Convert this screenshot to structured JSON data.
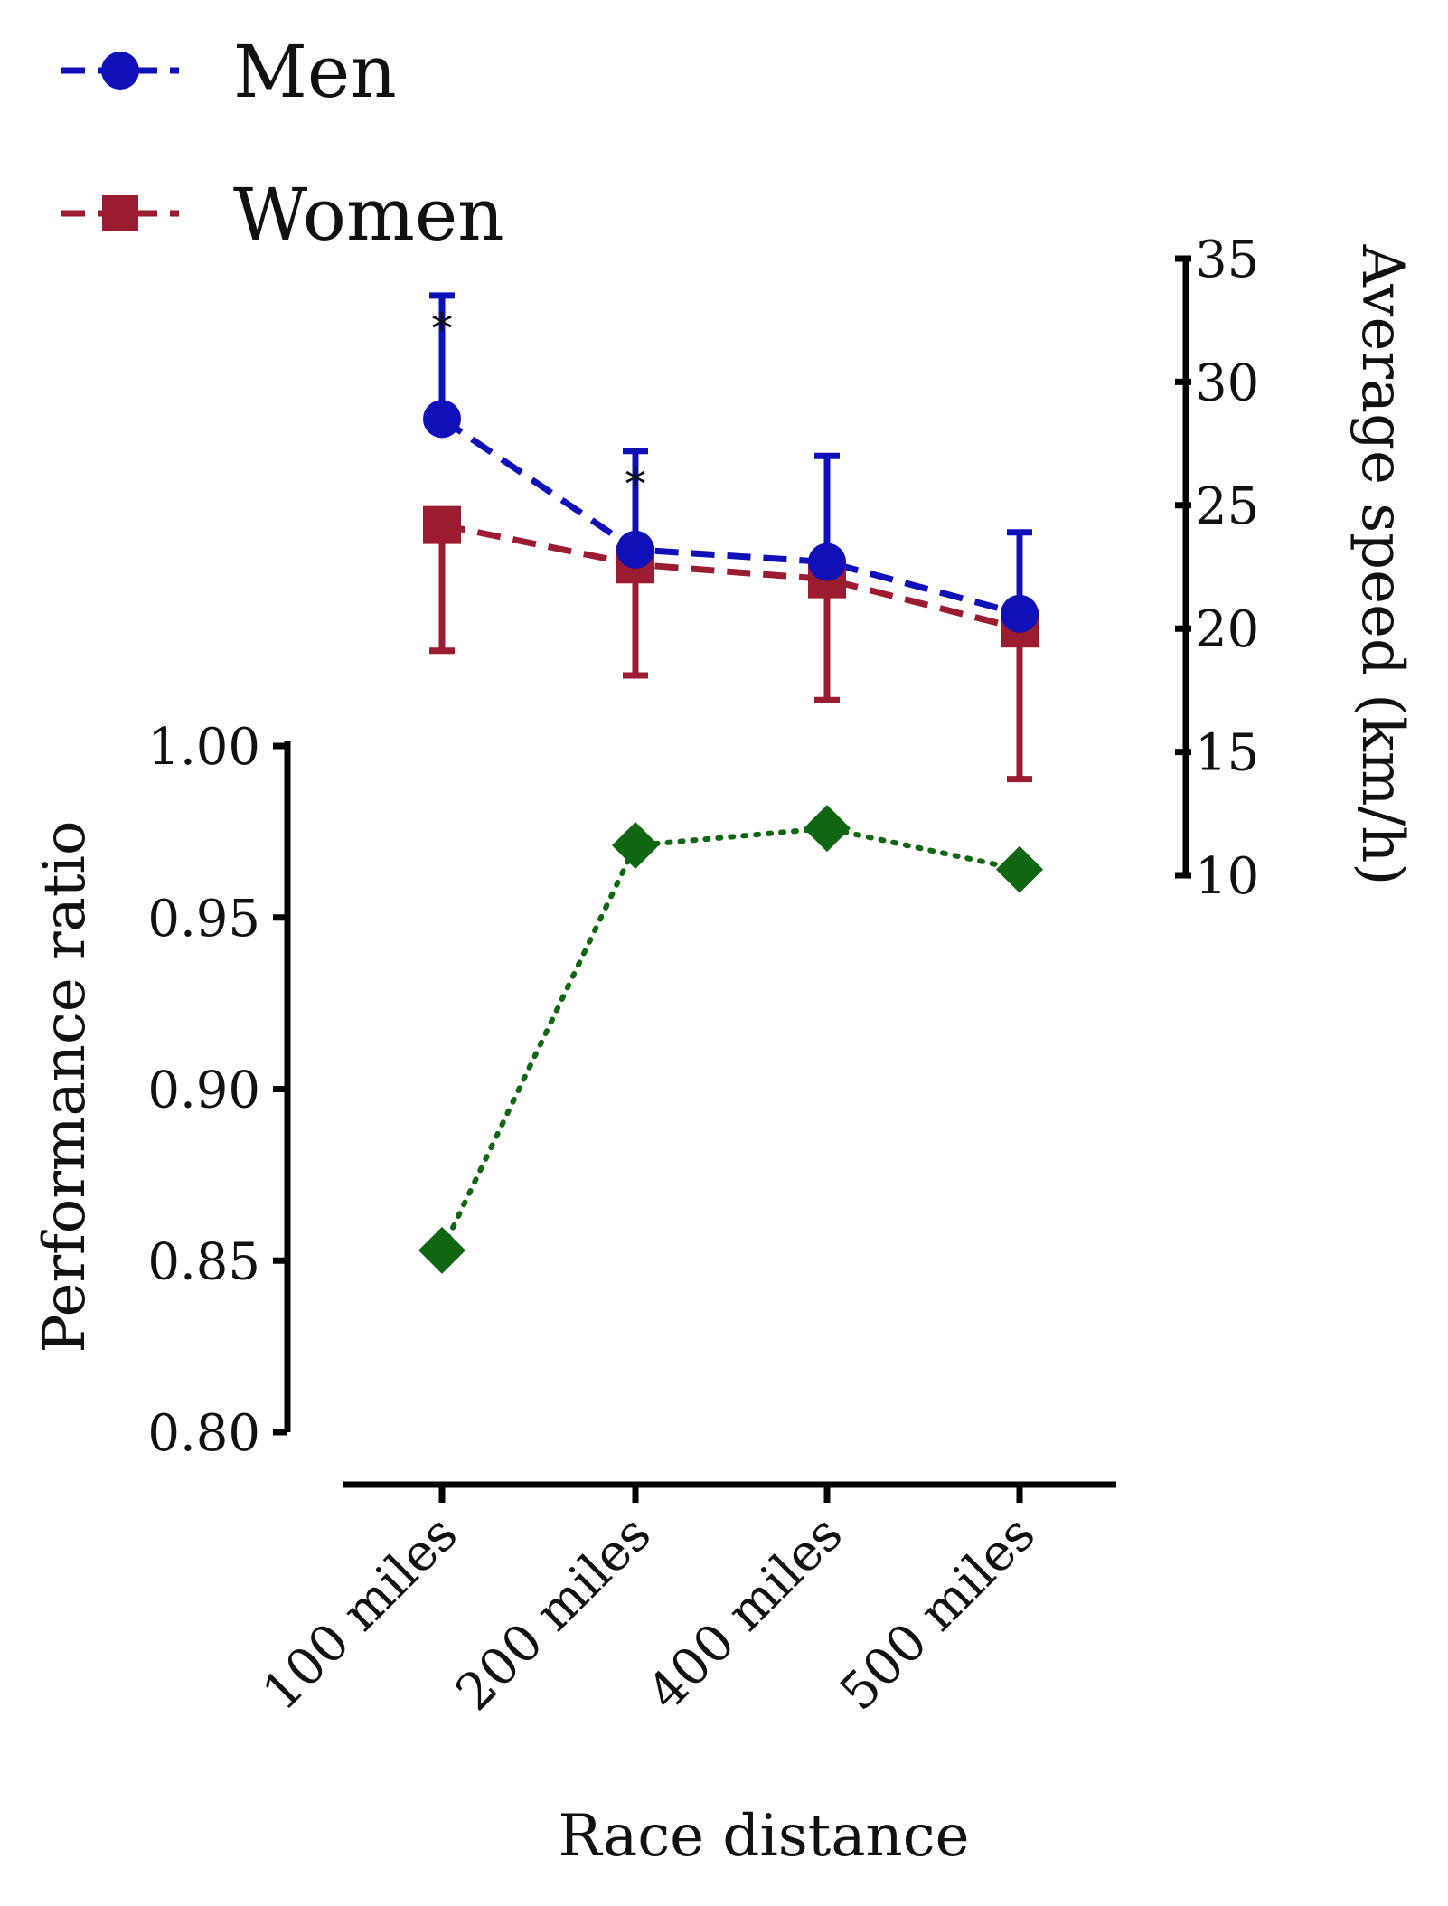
{
  "chart_data": {
    "type": "line",
    "categories": [
      "100 miles",
      "200 miles",
      "400 miles",
      "500 miles"
    ],
    "xlabel": "Race distance",
    "speed_axis": {
      "label": "Average speed (km/h)",
      "range": [
        10,
        35
      ],
      "ticks": [
        10,
        15,
        20,
        25,
        30,
        35
      ],
      "tick_labels": [
        "10",
        "15",
        "20",
        "25",
        "30",
        "35"
      ]
    },
    "ratio_axis": {
      "label": "Performance ratio",
      "range": [
        0.8,
        1.0
      ],
      "ticks": [
        0.8,
        0.85,
        0.9,
        0.95,
        1.0
      ],
      "tick_labels": [
        "0.80",
        "0.85",
        "0.90",
        "0.95",
        "1.00"
      ]
    },
    "series": [
      {
        "name": "Men",
        "axis": "speed",
        "color": "#1010b8",
        "marker": "circle",
        "linestyle": "dashed",
        "values": [
          28.5,
          23.2,
          22.7,
          20.6
        ],
        "error_up": [
          5.0,
          4.0,
          4.3,
          3.3
        ],
        "significance": [
          "*",
          "*",
          "",
          ""
        ]
      },
      {
        "name": "Women",
        "axis": "speed",
        "color": "#9b1b30",
        "marker": "square",
        "linestyle": "dashed",
        "values": [
          24.2,
          22.6,
          22.0,
          20.0
        ],
        "error_down": [
          5.1,
          4.5,
          4.9,
          6.1
        ]
      },
      {
        "name": "Performance ratio",
        "axis": "ratio",
        "color": "#116611",
        "marker": "diamond",
        "linestyle": "dotted",
        "values": [
          0.853,
          0.971,
          0.976,
          0.964
        ]
      }
    ]
  }
}
